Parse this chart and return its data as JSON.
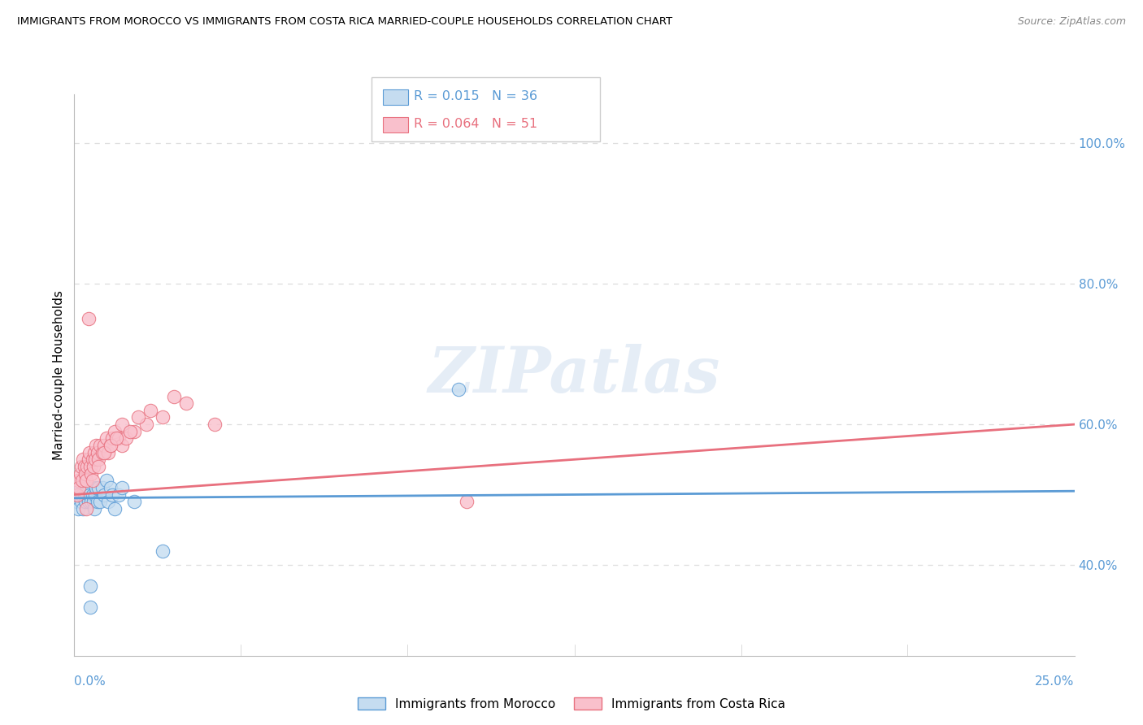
{
  "title": "IMMIGRANTS FROM MOROCCO VS IMMIGRANTS FROM COSTA RICA MARRIED-COUPLE HOUSEHOLDS CORRELATION CHART",
  "source": "Source: ZipAtlas.com",
  "ylabel": "Married-couple Households",
  "xlim": [
    0.0,
    25.0
  ],
  "ylim": [
    27.0,
    107.0
  ],
  "yticks": [
    40.0,
    60.0,
    80.0,
    100.0
  ],
  "ytick_labels": [
    "40.0%",
    "60.0%",
    "80.0%",
    "100.0%"
  ],
  "xtick_left": "0.0%",
  "xtick_right": "25.0%",
  "watermark": "ZIPatlas",
  "r_morocco": 0.015,
  "n_morocco": 36,
  "r_costarica": 0.064,
  "n_costarica": 51,
  "color_morocco_fill": "#c5dcf0",
  "color_morocco_edge": "#5b9bd5",
  "color_costarica_fill": "#f9c0cc",
  "color_costarica_edge": "#e8707e",
  "line_color_morocco": "#5b9bd5",
  "line_color_costarica": "#e8707e",
  "background_color": "#ffffff",
  "grid_color": "#dddddd",
  "morocco_x": [
    0.08,
    0.1,
    0.12,
    0.15,
    0.18,
    0.2,
    0.22,
    0.25,
    0.28,
    0.3,
    0.32,
    0.35,
    0.38,
    0.4,
    0.42,
    0.45,
    0.48,
    0.5,
    0.52,
    0.55,
    0.58,
    0.6,
    0.65,
    0.7,
    0.75,
    0.8,
    0.85,
    0.9,
    0.95,
    1.0,
    1.1,
    1.2,
    1.5,
    2.2,
    9.6,
    0.4
  ],
  "morocco_y": [
    49,
    48,
    50,
    51,
    49,
    50,
    48,
    50,
    49,
    50,
    51,
    49,
    50,
    34,
    49,
    50,
    49,
    48,
    50,
    51,
    49,
    51,
    49,
    51,
    50,
    52,
    49,
    51,
    50,
    48,
    50,
    51,
    49,
    42,
    65,
    37
  ],
  "costarica_x": [
    0.08,
    0.1,
    0.12,
    0.15,
    0.18,
    0.2,
    0.22,
    0.25,
    0.28,
    0.3,
    0.32,
    0.35,
    0.38,
    0.4,
    0.42,
    0.45,
    0.48,
    0.5,
    0.52,
    0.55,
    0.58,
    0.6,
    0.65,
    0.7,
    0.75,
    0.8,
    0.85,
    0.9,
    0.95,
    1.0,
    1.1,
    1.2,
    1.3,
    1.5,
    1.8,
    2.2,
    2.8,
    3.5,
    0.3,
    0.45,
    0.6,
    0.75,
    0.9,
    1.05,
    1.2,
    1.4,
    1.6,
    1.9,
    2.5,
    9.8,
    0.35
  ],
  "costarica_y": [
    50,
    52,
    51,
    53,
    54,
    52,
    55,
    54,
    53,
    52,
    54,
    55,
    56,
    54,
    53,
    55,
    54,
    56,
    55,
    57,
    56,
    55,
    57,
    56,
    57,
    58,
    56,
    57,
    58,
    59,
    58,
    57,
    58,
    59,
    60,
    61,
    63,
    60,
    48,
    52,
    54,
    56,
    57,
    58,
    60,
    59,
    61,
    62,
    64,
    49,
    75
  ]
}
